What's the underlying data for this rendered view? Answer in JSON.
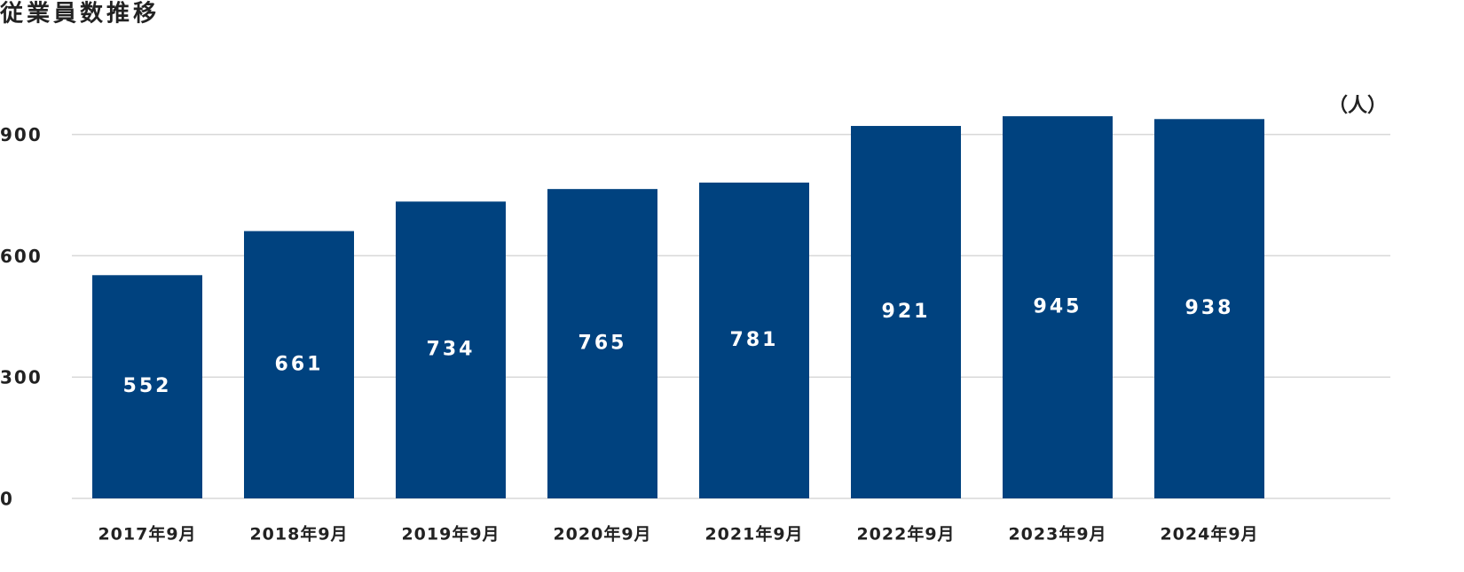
{
  "chart_data": {
    "type": "bar",
    "title": "従業員数推移",
    "ylabel": "（人）",
    "categories": [
      "2017年9月",
      "2018年9月",
      "2019年9月",
      "2020年9月",
      "2021年9月",
      "2022年9月",
      "2023年9月",
      "2024年9月"
    ],
    "values": [
      552,
      661,
      734,
      765,
      781,
      921,
      945,
      938
    ],
    "color": "#00427f",
    "ylim": [
      0,
      1000
    ],
    "yticks": [
      0,
      300,
      600,
      900
    ],
    "grid": true
  }
}
